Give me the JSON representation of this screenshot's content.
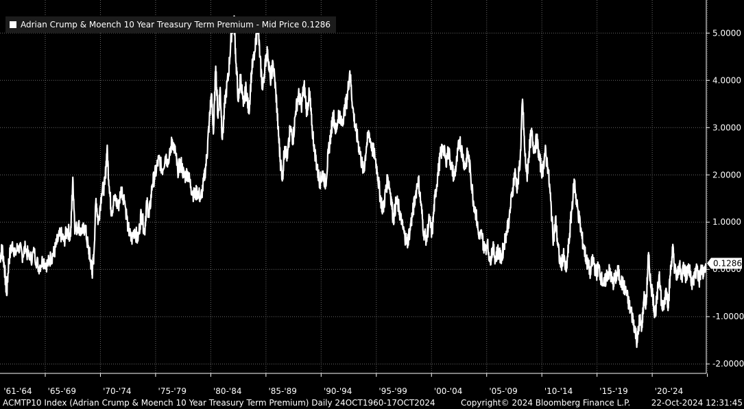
{
  "legend": {
    "label": "Adrian Crump & Moench 10 Year Treasury Term Premium - Mid Price 0.1286"
  },
  "last_price_tag": "0.1286",
  "footer": {
    "left": "ACMTP10 Index (Adrian Crump & Moench 10 Year Treasury Term Premium)  Daily 24OCT1960-17OCT2024",
    "middle": "Copyright© 2024 Bloomberg Finance L.P.",
    "right": "22-Oct-2024 12:31:45"
  },
  "chart_data": {
    "type": "line",
    "title": "",
    "xlabel": "",
    "ylabel": "",
    "x_range": [
      1960.8,
      2024.8
    ],
    "ylim": [
      -2.2,
      5.7
    ],
    "y_ticks": [
      5,
      4,
      3,
      2,
      1,
      0,
      -1,
      -2
    ],
    "y_tick_labels": [
      "5.0000",
      "4.0000",
      "3.0000",
      "2.0000",
      "1.0000",
      "0.0000",
      "-1.0000",
      "-2.0000"
    ],
    "x_ticks": [
      {
        "label": "'61-'64",
        "x": 1961.0
      },
      {
        "label": "'65-'69",
        "x": 1965.0
      },
      {
        "label": "'70-'74",
        "x": 1970.0
      },
      {
        "label": "'75-'79",
        "x": 1975.0
      },
      {
        "label": "'80-'84",
        "x": 1980.0
      },
      {
        "label": "'85-'89",
        "x": 1985.0
      },
      {
        "label": "'90-'94",
        "x": 1990.0
      },
      {
        "label": "'95-'99",
        "x": 1995.0
      },
      {
        "label": "'00-'04",
        "x": 2000.0
      },
      {
        "label": "'05-'09",
        "x": 2005.0
      },
      {
        "label": "'10-'14",
        "x": 2010.0
      },
      {
        "label": "'15-'19",
        "x": 2015.0
      },
      {
        "label": "'20-'24",
        "x": 2020.0
      }
    ],
    "x_boundaries": [
      1964.9,
      1969.9,
      1974.9,
      1979.9,
      1984.9,
      1989.9,
      1994.9,
      1999.9,
      2004.9,
      2009.9,
      2014.9,
      2019.9,
      2024.9
    ],
    "grid": true,
    "legend_position": "top-left",
    "last_value": 0.1286,
    "series": [
      {
        "name": "Adrian Crump & Moench 10 Year Treasury Term Premium - Mid Price",
        "color": "#ffffff",
        "points": [
          [
            1960.8,
            0.25
          ],
          [
            1961.0,
            0.45
          ],
          [
            1961.2,
            0.05
          ],
          [
            1961.4,
            -0.55
          ],
          [
            1961.6,
            0.2
          ],
          [
            1961.9,
            0.55
          ],
          [
            1962.2,
            0.35
          ],
          [
            1962.5,
            0.5
          ],
          [
            1962.8,
            0.3
          ],
          [
            1963.1,
            0.45
          ],
          [
            1963.5,
            0.2
          ],
          [
            1963.9,
            0.35
          ],
          [
            1964.3,
            0.05
          ],
          [
            1964.7,
            0.2
          ],
          [
            1965.1,
            0.1
          ],
          [
            1965.4,
            0.25
          ],
          [
            1965.7,
            0.35
          ],
          [
            1966.0,
            0.6
          ],
          [
            1966.3,
            0.75
          ],
          [
            1966.6,
            0.6
          ],
          [
            1966.9,
            0.85
          ],
          [
            1967.2,
            0.7
          ],
          [
            1967.4,
            1.95
          ],
          [
            1967.6,
            0.8
          ],
          [
            1967.9,
            0.95
          ],
          [
            1968.2,
            0.75
          ],
          [
            1968.5,
            0.9
          ],
          [
            1968.8,
            0.45
          ],
          [
            1969.0,
            0.2
          ],
          [
            1969.15,
            -0.1
          ],
          [
            1969.3,
            0.3
          ],
          [
            1969.5,
            1.5
          ],
          [
            1969.7,
            1.0
          ],
          [
            1970.0,
            1.6
          ],
          [
            1970.3,
            1.8
          ],
          [
            1970.5,
            2.55
          ],
          [
            1970.7,
            1.75
          ],
          [
            1970.9,
            1.2
          ],
          [
            1971.2,
            1.55
          ],
          [
            1971.5,
            1.3
          ],
          [
            1971.8,
            1.7
          ],
          [
            1972.1,
            1.45
          ],
          [
            1972.4,
            0.9
          ],
          [
            1972.7,
            0.6
          ],
          [
            1973.0,
            0.85
          ],
          [
            1973.3,
            0.6
          ],
          [
            1973.6,
            1.2
          ],
          [
            1973.9,
            0.8
          ],
          [
            1974.1,
            1.45
          ],
          [
            1974.3,
            1.1
          ],
          [
            1974.6,
            1.8
          ],
          [
            1974.9,
            2.05
          ],
          [
            1975.2,
            2.35
          ],
          [
            1975.5,
            2.1
          ],
          [
            1975.8,
            2.4
          ],
          [
            1976.1,
            2.25
          ],
          [
            1976.4,
            2.75
          ],
          [
            1976.7,
            2.45
          ],
          [
            1976.9,
            2.1
          ],
          [
            1977.2,
            2.25
          ],
          [
            1977.5,
            1.95
          ],
          [
            1977.8,
            2.05
          ],
          [
            1978.1,
            1.75
          ],
          [
            1978.4,
            1.55
          ],
          [
            1978.7,
            1.65
          ],
          [
            1979.0,
            1.5
          ],
          [
            1979.3,
            1.9
          ],
          [
            1979.55,
            2.4
          ],
          [
            1979.75,
            3.1
          ],
          [
            1979.95,
            3.7
          ],
          [
            1980.15,
            2.9
          ],
          [
            1980.35,
            4.3
          ],
          [
            1980.55,
            3.2
          ],
          [
            1980.75,
            3.85
          ],
          [
            1980.95,
            2.75
          ],
          [
            1981.2,
            3.6
          ],
          [
            1981.5,
            4.1
          ],
          [
            1981.75,
            4.95
          ],
          [
            1982.0,
            5.3
          ],
          [
            1982.2,
            4.35
          ],
          [
            1982.4,
            3.55
          ],
          [
            1982.6,
            4.1
          ],
          [
            1982.85,
            3.45
          ],
          [
            1983.1,
            3.85
          ],
          [
            1983.35,
            3.3
          ],
          [
            1983.6,
            4.2
          ],
          [
            1983.9,
            4.6
          ],
          [
            1984.15,
            5.25
          ],
          [
            1984.35,
            4.5
          ],
          [
            1984.6,
            3.8
          ],
          [
            1984.85,
            4.4
          ],
          [
            1985.05,
            4.65
          ],
          [
            1985.3,
            4.0
          ],
          [
            1985.55,
            4.35
          ],
          [
            1985.8,
            3.75
          ],
          [
            1986.0,
            3.0
          ],
          [
            1986.2,
            2.3
          ],
          [
            1986.4,
            1.95
          ],
          [
            1986.6,
            2.6
          ],
          [
            1986.85,
            2.35
          ],
          [
            1987.1,
            3.0
          ],
          [
            1987.35,
            2.75
          ],
          [
            1987.6,
            3.35
          ],
          [
            1987.85,
            3.7
          ],
          [
            1988.1,
            3.45
          ],
          [
            1988.35,
            3.9
          ],
          [
            1988.6,
            3.35
          ],
          [
            1988.85,
            3.75
          ],
          [
            1989.05,
            3.05
          ],
          [
            1989.3,
            2.55
          ],
          [
            1989.55,
            2.1
          ],
          [
            1989.8,
            1.85
          ],
          [
            1990.05,
            2.05
          ],
          [
            1990.3,
            1.8
          ],
          [
            1990.55,
            2.45
          ],
          [
            1990.8,
            2.9
          ],
          [
            1991.0,
            3.3
          ],
          [
            1991.25,
            2.9
          ],
          [
            1991.5,
            3.35
          ],
          [
            1991.75,
            3.05
          ],
          [
            1992.0,
            3.35
          ],
          [
            1992.25,
            3.6
          ],
          [
            1992.5,
            4.2
          ],
          [
            1992.75,
            3.45
          ],
          [
            1993.0,
            3.0
          ],
          [
            1993.25,
            2.7
          ],
          [
            1993.5,
            2.35
          ],
          [
            1993.75,
            2.05
          ],
          [
            1994.0,
            2.6
          ],
          [
            1994.25,
            2.9
          ],
          [
            1994.5,
            2.55
          ],
          [
            1994.75,
            2.45
          ],
          [
            1995.0,
            2.05
          ],
          [
            1995.25,
            1.55
          ],
          [
            1995.5,
            1.25
          ],
          [
            1995.75,
            1.65
          ],
          [
            1995.95,
            1.95
          ],
          [
            1996.2,
            1.6
          ],
          [
            1996.45,
            1.05
          ],
          [
            1996.7,
            1.45
          ],
          [
            1996.95,
            1.3
          ],
          [
            1997.2,
            0.95
          ],
          [
            1997.45,
            0.75
          ],
          [
            1997.7,
            0.55
          ],
          [
            1997.95,
            0.85
          ],
          [
            1998.2,
            1.2
          ],
          [
            1998.45,
            1.55
          ],
          [
            1998.7,
            1.95
          ],
          [
            1998.95,
            1.35
          ],
          [
            1999.2,
            0.8
          ],
          [
            1999.45,
            0.65
          ],
          [
            1999.7,
            1.05
          ],
          [
            1999.95,
            0.75
          ],
          [
            2000.2,
            1.5
          ],
          [
            2000.45,
            1.95
          ],
          [
            2000.7,
            2.4
          ],
          [
            2000.95,
            2.6
          ],
          [
            2001.2,
            2.3
          ],
          [
            2001.45,
            2.5
          ],
          [
            2001.7,
            2.2
          ],
          [
            2001.95,
            1.95
          ],
          [
            2002.2,
            2.3
          ],
          [
            2002.45,
            2.75
          ],
          [
            2002.7,
            2.45
          ],
          [
            2002.95,
            2.15
          ],
          [
            2003.2,
            2.5
          ],
          [
            2003.45,
            2.0
          ],
          [
            2003.7,
            1.45
          ],
          [
            2003.95,
            1.15
          ],
          [
            2004.2,
            0.65
          ],
          [
            2004.45,
            0.75
          ],
          [
            2004.7,
            0.4
          ],
          [
            2004.95,
            0.55
          ],
          [
            2005.2,
            0.2
          ],
          [
            2005.45,
            0.45
          ],
          [
            2005.7,
            0.25
          ],
          [
            2005.95,
            0.4
          ],
          [
            2006.2,
            0.2
          ],
          [
            2006.45,
            0.5
          ],
          [
            2006.7,
            0.8
          ],
          [
            2006.95,
            1.1
          ],
          [
            2007.2,
            1.6
          ],
          [
            2007.45,
            2.05
          ],
          [
            2007.7,
            1.7
          ],
          [
            2007.95,
            2.4
          ],
          [
            2008.15,
            3.6
          ],
          [
            2008.35,
            2.5
          ],
          [
            2008.55,
            1.95
          ],
          [
            2008.75,
            2.5
          ],
          [
            2008.95,
            2.9
          ],
          [
            2009.2,
            2.55
          ],
          [
            2009.45,
            2.75
          ],
          [
            2009.7,
            2.3
          ],
          [
            2009.95,
            2.05
          ],
          [
            2010.2,
            2.5
          ],
          [
            2010.45,
            2.15
          ],
          [
            2010.7,
            1.45
          ],
          [
            2010.95,
            0.6
          ],
          [
            2011.15,
            1.05
          ],
          [
            2011.35,
            0.5
          ],
          [
            2011.6,
            0.05
          ],
          [
            2011.85,
            0.3
          ],
          [
            2012.1,
            -0.05
          ],
          [
            2012.35,
            0.55
          ],
          [
            2012.6,
            1.25
          ],
          [
            2012.85,
            1.9
          ],
          [
            2013.05,
            1.4
          ],
          [
            2013.3,
            1.05
          ],
          [
            2013.55,
            0.65
          ],
          [
            2013.8,
            0.35
          ],
          [
            2014.05,
            0.1
          ],
          [
            2014.3,
            -0.05
          ],
          [
            2014.55,
            0.25
          ],
          [
            2014.8,
            -0.1
          ],
          [
            2015.05,
            0.05
          ],
          [
            2015.3,
            -0.2
          ],
          [
            2015.55,
            -0.35
          ],
          [
            2015.8,
            -0.1
          ],
          [
            2016.05,
            -0.05
          ],
          [
            2016.3,
            -0.3
          ],
          [
            2016.55,
            -0.2
          ],
          [
            2016.8,
            -0.05
          ],
          [
            2017.05,
            -0.25
          ],
          [
            2017.3,
            -0.35
          ],
          [
            2017.55,
            -0.5
          ],
          [
            2017.8,
            -0.75
          ],
          [
            2018.05,
            -0.95
          ],
          [
            2018.3,
            -1.2
          ],
          [
            2018.55,
            -1.55
          ],
          [
            2018.75,
            -1.05
          ],
          [
            2018.95,
            -1.25
          ],
          [
            2019.15,
            -0.6
          ],
          [
            2019.35,
            -0.75
          ],
          [
            2019.55,
            0.3
          ],
          [
            2019.75,
            -0.25
          ],
          [
            2019.95,
            -0.55
          ],
          [
            2020.15,
            -0.95
          ],
          [
            2020.35,
            -0.6
          ],
          [
            2020.55,
            -0.05
          ],
          [
            2020.75,
            -0.75
          ],
          [
            2020.95,
            -0.85
          ],
          [
            2021.15,
            -0.4
          ],
          [
            2021.35,
            -0.75
          ],
          [
            2021.55,
            -0.1
          ],
          [
            2021.75,
            0.45
          ],
          [
            2021.95,
            0.0
          ],
          [
            2022.15,
            -0.2
          ],
          [
            2022.35,
            0.1
          ],
          [
            2022.55,
            -0.2
          ],
          [
            2022.75,
            0.1
          ],
          [
            2022.95,
            -0.15
          ],
          [
            2023.15,
            0.05
          ],
          [
            2023.35,
            -0.1
          ],
          [
            2023.55,
            -0.3
          ],
          [
            2023.75,
            -0.15
          ],
          [
            2023.95,
            0.05
          ],
          [
            2024.15,
            -0.25
          ],
          [
            2024.35,
            0.0
          ],
          [
            2024.55,
            -0.15
          ],
          [
            2024.75,
            0.1286
          ]
        ]
      }
    ]
  }
}
